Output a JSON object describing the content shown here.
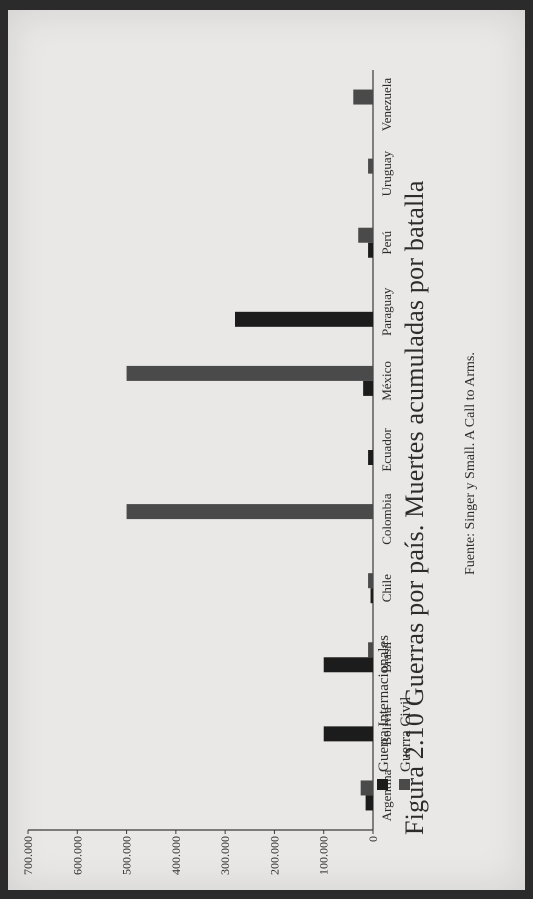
{
  "figure": {
    "title": "Figura 2.10 Guerras por país. Muertes acumuladas por batalla",
    "source": "Fuente: Singer y Small. A Call to Arms."
  },
  "chart_data": {
    "type": "bar",
    "title": "Figura 2.10 Guerras por país. Muertes acumuladas por batalla",
    "xlabel": "",
    "ylabel": "",
    "ylim": [
      0,
      700000
    ],
    "yticks": [
      0,
      100000,
      200000,
      300000,
      400000,
      500000,
      600000,
      700000
    ],
    "ytick_labels": [
      "0",
      "100.000",
      "200.000",
      "300.000",
      "400.000",
      "500.000",
      "600.000",
      "700.000"
    ],
    "categories": [
      "Argentina",
      "Bolivia",
      "Brasil",
      "Chile",
      "Colombia",
      "Ecuador",
      "México",
      "Paraguay",
      "Perú",
      "Uruguay",
      "Venezuela"
    ],
    "series": [
      {
        "name": "Guerra Internacionales",
        "color": "#1c1c1c",
        "values": [
          15000,
          100000,
          100000,
          5000,
          0,
          10000,
          20000,
          280000,
          10000,
          0,
          0
        ]
      },
      {
        "name": "Guerra Civil",
        "color": "#4a4a4a",
        "values": [
          25000,
          0,
          10000,
          10000,
          500000,
          0,
          500000,
          0,
          30000,
          10000,
          40000
        ]
      }
    ],
    "grid": false,
    "legend_position": "top-left"
  }
}
